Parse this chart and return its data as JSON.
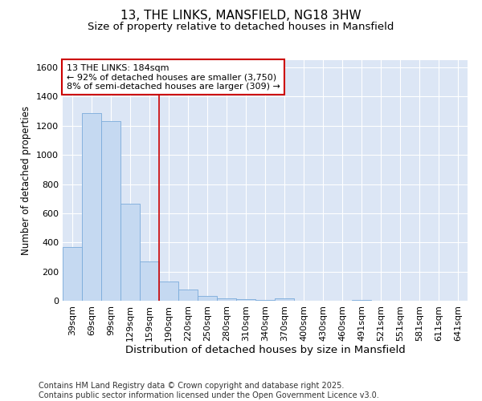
{
  "title": "13, THE LINKS, MANSFIELD, NG18 3HW",
  "subtitle": "Size of property relative to detached houses in Mansfield",
  "xlabel": "Distribution of detached houses by size in Mansfield",
  "ylabel": "Number of detached properties",
  "categories": [
    "39sqm",
    "69sqm",
    "99sqm",
    "129sqm",
    "159sqm",
    "190sqm",
    "220sqm",
    "250sqm",
    "280sqm",
    "310sqm",
    "340sqm",
    "370sqm",
    "400sqm",
    "430sqm",
    "460sqm",
    "491sqm",
    "521sqm",
    "551sqm",
    "581sqm",
    "611sqm",
    "641sqm"
  ],
  "values": [
    370,
    1285,
    1230,
    665,
    270,
    130,
    75,
    35,
    15,
    10,
    5,
    15,
    0,
    0,
    0,
    5,
    0,
    0,
    0,
    0,
    0
  ],
  "bar_color": "#c5d9f1",
  "bar_edge_color": "#7aabdb",
  "vline_color": "#cc0000",
  "annotation_text": "13 THE LINKS: 184sqm\n← 92% of detached houses are smaller (3,750)\n8% of semi-detached houses are larger (309) →",
  "annotation_box_color": "#ffffff",
  "annotation_box_edge": "#cc0000",
  "ylim": [
    0,
    1650
  ],
  "yticks": [
    0,
    200,
    400,
    600,
    800,
    1000,
    1200,
    1400,
    1600
  ],
  "plot_bg_color": "#dce6f5",
  "fig_bg_color": "#ffffff",
  "grid_color": "#ffffff",
  "footer": "Contains HM Land Registry data © Crown copyright and database right 2025.\nContains public sector information licensed under the Open Government Licence v3.0.",
  "title_fontsize": 11,
  "subtitle_fontsize": 9.5,
  "xlabel_fontsize": 9.5,
  "ylabel_fontsize": 8.5,
  "tick_fontsize": 8,
  "annotation_fontsize": 8,
  "footer_fontsize": 7
}
